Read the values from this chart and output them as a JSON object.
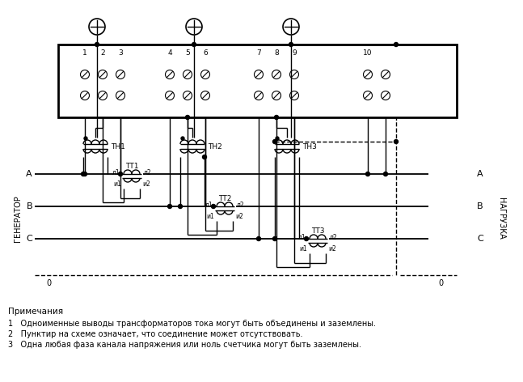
{
  "bg_color": "#ffffff",
  "notes_title": "Примечания",
  "note1": "1   Одноименные выводы трансформаторов тока могут быть объединены и заземлены.",
  "note2": "2   Пунктир на схеме означает, что соединение может отсутствовать.",
  "note3": "3   Одна любая фаза канала напряжения или ноль счетчика могут быть заземлены.",
  "label_generator": "ГЕНЕРАТОР",
  "label_load": "НАГРУЗКА",
  "label_A": "A",
  "label_B": "B",
  "label_C": "C",
  "label_0": "0",
  "label_TH1": "ТН1",
  "label_TH2": "ТН2",
  "label_TH3": "ТН3",
  "label_TT1": "ТТ1",
  "label_TT2": "ТТ2",
  "label_TT3": "ТТ3",
  "term_nums": [
    "1",
    "2",
    "3",
    "4",
    "5",
    "6",
    "7",
    "8",
    "9",
    "10"
  ]
}
